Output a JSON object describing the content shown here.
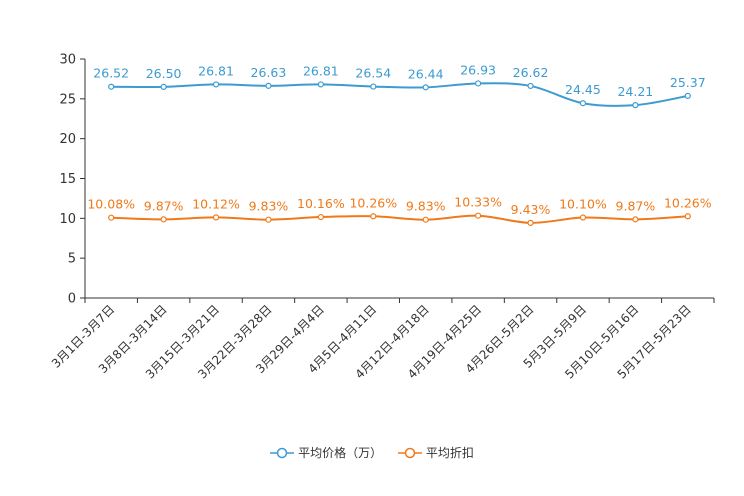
{
  "chart_data": {
    "type": "line",
    "categories": [
      "3月1日-3月7日",
      "3月8日-3月14日",
      "3月15日-3月21日",
      "3月22日-3月28日",
      "3月29日-4月4日",
      "4月5日-4月11日",
      "4月12日-4月18日",
      "4月19日-4月25日",
      "4月26日-5月2日",
      "5月3日-5月9日",
      "5月10日-5月16日",
      "5月17日-5月23日"
    ],
    "series": [
      {
        "name": "平均价格（万）",
        "color": "#3c9bd1",
        "values": [
          26.52,
          26.5,
          26.81,
          26.63,
          26.81,
          26.54,
          26.44,
          26.93,
          26.62,
          24.45,
          24.21,
          25.37
        ],
        "labels": [
          "26.52",
          "26.50",
          "26.81",
          "26.63",
          "26.81",
          "26.54",
          "26.44",
          "26.93",
          "26.62",
          "24.45",
          "24.21",
          "25.37"
        ]
      },
      {
        "name": "平均折扣",
        "color": "#f07a1a",
        "values": [
          10.08,
          9.87,
          10.12,
          9.83,
          10.16,
          10.26,
          9.83,
          10.33,
          9.43,
          10.1,
          9.87,
          10.26
        ],
        "labels": [
          "10.08%",
          "9.87%",
          "10.12%",
          "9.83%",
          "10.16%",
          "10.26%",
          "9.83%",
          "10.33%",
          "9.43%",
          "10.10%",
          "9.87%",
          "10.26%"
        ]
      }
    ],
    "yticks": [
      "0",
      "5",
      "10",
      "15",
      "20",
      "25",
      "30"
    ],
    "ylim": [
      0,
      30
    ],
    "title": "",
    "xlabel": "",
    "ylabel": "",
    "grid": false,
    "legend_position": "bottom"
  }
}
